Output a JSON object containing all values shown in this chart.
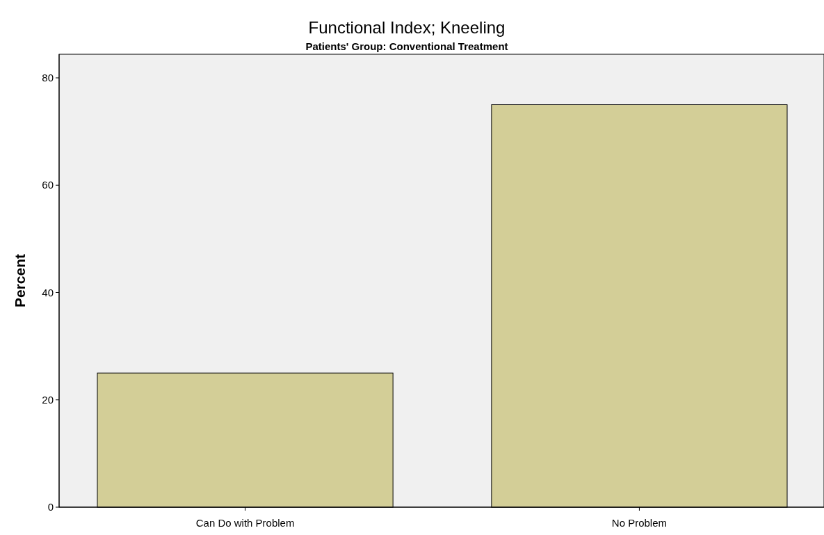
{
  "chart_data": {
    "type": "bar",
    "title": "Functional Index; Kneeling",
    "subtitle": "Patients' Group: Conventional Treatment",
    "ylabel": "Percent",
    "categories": [
      "Can Do with Problem",
      "No Problem"
    ],
    "values": [
      25,
      75
    ],
    "color": "#d3ce97",
    "ylim": [
      0,
      84.4
    ],
    "yticks": [
      0,
      20,
      40,
      60,
      80
    ],
    "grid": false
  }
}
